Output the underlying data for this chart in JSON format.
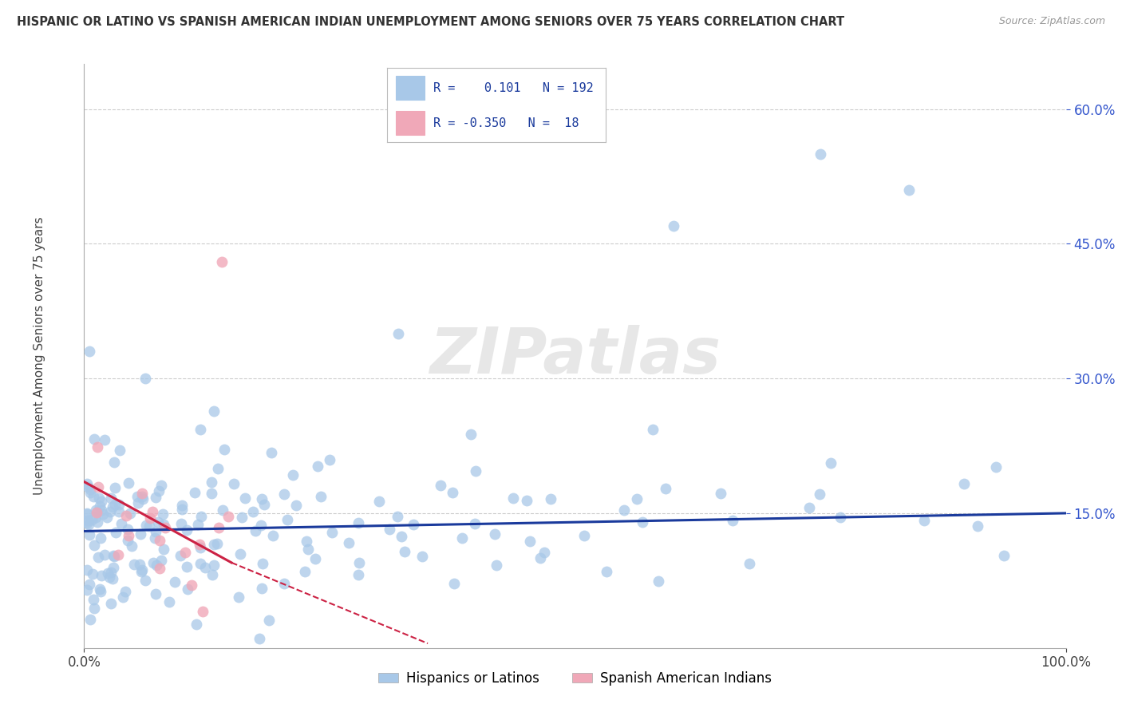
{
  "title": "HISPANIC OR LATINO VS SPANISH AMERICAN INDIAN UNEMPLOYMENT AMONG SENIORS OVER 75 YEARS CORRELATION CHART",
  "source": "Source: ZipAtlas.com",
  "ylabel": "Unemployment Among Seniors over 75 years",
  "xlim": [
    0,
    100
  ],
  "ylim": [
    0,
    65
  ],
  "xtick_labels": [
    "0.0%",
    "100.0%"
  ],
  "ytick_values": [
    15,
    30,
    45,
    60
  ],
  "legend_r1": "0.101",
  "legend_n1": "192",
  "legend_r2": "-0.350",
  "legend_n2": "18",
  "blue_scatter_color": "#a8c8e8",
  "pink_scatter_color": "#f0a8b8",
  "trend_blue_color": "#1a3a9c",
  "trend_pink_color": "#cc2244",
  "watermark_color": "#d8d8d8",
  "watermark": "ZIPatlas",
  "bg_color": "#ffffff",
  "blue_seed": 42,
  "pink_seed": 7
}
